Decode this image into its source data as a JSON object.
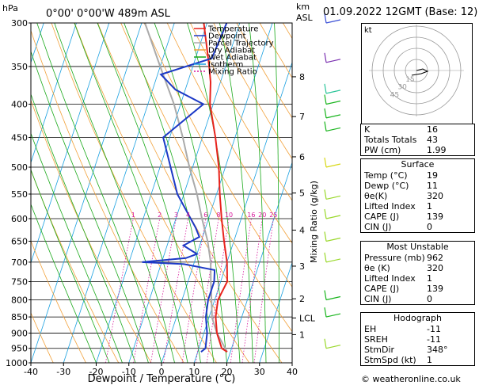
{
  "header": {
    "pressure_unit": "hPa",
    "location": "0°00' 0°00'W  489m  ASL",
    "km_unit": "km",
    "asl_unit": "ASL",
    "datetime": "01.09.2022  12GMT  (Base: 12)"
  },
  "chart_data": {
    "type": "line",
    "xlabel": "Dewpoint / Temperature (°C)",
    "ylabel": "Mixing Ratio (g/kg)",
    "x_ticks": [
      -40,
      -30,
      -20,
      -10,
      0,
      10,
      20,
      30,
      40
    ],
    "xlim": [
      -40,
      40
    ],
    "pressure_levels": [
      300,
      350,
      400,
      450,
      500,
      550,
      600,
      650,
      700,
      750,
      800,
      850,
      900,
      950,
      1000
    ],
    "ylim": [
      300,
      1000
    ],
    "y_scale": "log",
    "km_ticks": [
      {
        "label": "8",
        "p": 363
      },
      {
        "label": "7",
        "p": 418
      },
      {
        "label": "6",
        "p": 482
      },
      {
        "label": "5",
        "p": 548
      },
      {
        "label": "4",
        "p": 625
      },
      {
        "label": "3",
        "p": 710
      },
      {
        "label": "2",
        "p": 797
      },
      {
        "label": "LCL",
        "p": 853
      },
      {
        "label": "1",
        "p": 905
      }
    ],
    "mixing_ratio_labels": [
      "1",
      "2",
      "3",
      "4",
      "6",
      "8",
      "10",
      "16",
      "20",
      "25"
    ],
    "legend": [
      "Temperature",
      "Dewpoint",
      "Parcel Trajectory",
      "Dry Adiabat",
      "Wet Adiabat",
      "Isotherm",
      "Mixing Ratio"
    ],
    "series": [
      {
        "name": "Temperature",
        "color": "#e8231d",
        "points": [
          [
            962,
            19
          ],
          [
            950,
            17
          ],
          [
            900,
            14
          ],
          [
            850,
            12
          ],
          [
            800,
            11
          ],
          [
            750,
            12
          ],
          [
            700,
            10
          ],
          [
            650,
            7
          ],
          [
            600,
            4
          ],
          [
            550,
            1
          ],
          [
            500,
            -2
          ],
          [
            450,
            -6
          ],
          [
            400,
            -11
          ],
          [
            370,
            -13
          ],
          [
            350,
            -15
          ],
          [
            300,
            -21
          ]
        ]
      },
      {
        "name": "Dewpoint",
        "color": "#1c39c6",
        "points": [
          [
            962,
            11
          ],
          [
            950,
            12
          ],
          [
            900,
            11
          ],
          [
            850,
            9
          ],
          [
            800,
            8
          ],
          [
            750,
            8
          ],
          [
            720,
            7
          ],
          [
            705,
            -3
          ],
          [
            700,
            -16
          ],
          [
            690,
            -3
          ],
          [
            680,
            0
          ],
          [
            660,
            -5
          ],
          [
            640,
            -1
          ],
          [
            620,
            -3
          ],
          [
            550,
            -12
          ],
          [
            450,
            -22
          ],
          [
            400,
            -13
          ],
          [
            380,
            -23
          ],
          [
            360,
            -29
          ],
          [
            340,
            -15
          ],
          [
            300,
            -14
          ]
        ]
      },
      {
        "name": "Parcel Trajectory",
        "color": "#aaaaaa",
        "points": [
          [
            962,
            19
          ],
          [
            900,
            14
          ],
          [
            853,
            11
          ],
          [
            800,
            9
          ],
          [
            750,
            7
          ],
          [
            700,
            5
          ],
          [
            650,
            2
          ],
          [
            600,
            -2
          ],
          [
            550,
            -6
          ],
          [
            500,
            -11
          ],
          [
            450,
            -16
          ],
          [
            400,
            -22
          ],
          [
            350,
            -30
          ],
          [
            300,
            -39
          ]
        ]
      }
    ]
  },
  "hodograph": {
    "unit": "kt",
    "ring_labels": [
      "45",
      "30",
      "15"
    ]
  },
  "indices": {
    "rows": [
      {
        "k": "K",
        "v": "16"
      },
      {
        "k": "Totals Totals",
        "v": "43"
      },
      {
        "k": "PW (cm)",
        "v": "1.99"
      }
    ]
  },
  "surface": {
    "title": "Surface",
    "rows": [
      {
        "k": "Temp (°C)",
        "v": "19"
      },
      {
        "k": "Dewp (°C)",
        "v": "11"
      },
      {
        "k": "θe(K)",
        "v": "320"
      },
      {
        "k": "Lifted Index",
        "v": "1"
      },
      {
        "k": "CAPE (J)",
        "v": "139"
      },
      {
        "k": "CIN (J)",
        "v": "0"
      }
    ]
  },
  "most_unstable": {
    "title": "Most Unstable",
    "rows": [
      {
        "k": "Pressure (mb)",
        "v": "962"
      },
      {
        "k": "θe (K)",
        "v": "320"
      },
      {
        "k": "Lifted Index",
        "v": "1"
      },
      {
        "k": "CAPE (J)",
        "v": "139"
      },
      {
        "k": "CIN (J)",
        "v": "0"
      }
    ]
  },
  "hodograph_table": {
    "title": "Hodograph",
    "rows": [
      {
        "k": "EH",
        "v": "-11"
      },
      {
        "k": "SREH",
        "v": "-11"
      },
      {
        "k": "StmDir",
        "v": "348°"
      },
      {
        "k": "StmSpd (kt)",
        "v": "1"
      }
    ]
  },
  "copyright": "© weatheronline.co.uk"
}
